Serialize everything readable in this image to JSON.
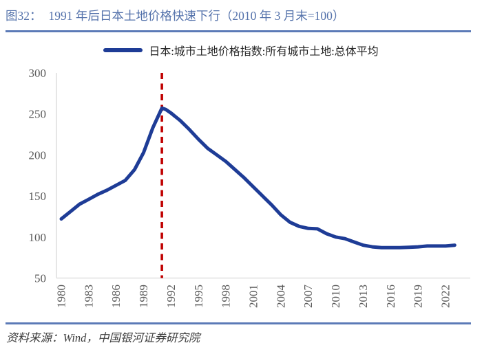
{
  "figure": {
    "title_prefix": "图32：",
    "title_text": "1991 年后日本土地价格快速下行（2010 年 3 月末=100）"
  },
  "legend": {
    "label": "日本:城市土地价格指数:所有城市土地:总体平均"
  },
  "source": {
    "text": "资料来源：Wind，中国银河证券研究院"
  },
  "colors": {
    "title": "#5472ab",
    "rule": "#5b7ab7",
    "line": "#1e3c96",
    "vline": "#c00000",
    "axis": "#d9d9d9",
    "tick_text": "#595959",
    "legend_text": "#262626",
    "source_text": "#3d3d3d"
  },
  "chart_data": {
    "type": "line",
    "title": "日本:城市土地价格指数:所有城市土地:总体平均",
    "xlabel": "",
    "ylabel": "",
    "xlim": [
      1979.6,
      2023.5
    ],
    "ylim": [
      50,
      300
    ],
    "grid": false,
    "legend_position": "top-center",
    "x_ticks": [
      1980,
      1983,
      1986,
      1989,
      1992,
      1995,
      1998,
      2001,
      2004,
      2007,
      2010,
      2013,
      2016,
      2019,
      2022
    ],
    "y_ticks": [
      50,
      100,
      150,
      200,
      250,
      300
    ],
    "vline": {
      "x": 1991,
      "color": "#c00000",
      "style": "dashed",
      "note": "1991 peak marker"
    },
    "series": [
      {
        "name": "日本:城市土地价格指数:所有城市土地:总体平均",
        "color": "#1e3c96",
        "points": [
          [
            1980,
            122
          ],
          [
            1981,
            131
          ],
          [
            1982,
            140
          ],
          [
            1983,
            146
          ],
          [
            1984,
            152
          ],
          [
            1985,
            157
          ],
          [
            1986,
            163
          ],
          [
            1987,
            169
          ],
          [
            1988,
            182
          ],
          [
            1989,
            203
          ],
          [
            1990,
            233
          ],
          [
            1991,
            257
          ],
          [
            1991.4,
            255.5
          ],
          [
            1992,
            251
          ],
          [
            1993,
            242
          ],
          [
            1994,
            231
          ],
          [
            1995,
            219
          ],
          [
            1996,
            208
          ],
          [
            1997,
            200
          ],
          [
            1998,
            192
          ],
          [
            1999,
            182
          ],
          [
            2000,
            172
          ],
          [
            2001,
            161
          ],
          [
            2002,
            150
          ],
          [
            2003,
            139
          ],
          [
            2004,
            127
          ],
          [
            2005,
            118
          ],
          [
            2006,
            113
          ],
          [
            2007,
            110.5
          ],
          [
            2008,
            110
          ],
          [
            2009,
            104
          ],
          [
            2010,
            100
          ],
          [
            2011,
            98
          ],
          [
            2012,
            94
          ],
          [
            2013,
            90
          ],
          [
            2014,
            88
          ],
          [
            2015,
            87
          ],
          [
            2016,
            87
          ],
          [
            2017,
            87
          ],
          [
            2018,
            87.5
          ],
          [
            2019,
            88
          ],
          [
            2020,
            89
          ],
          [
            2021,
            89
          ],
          [
            2022,
            89
          ],
          [
            2023,
            90
          ]
        ]
      }
    ]
  }
}
